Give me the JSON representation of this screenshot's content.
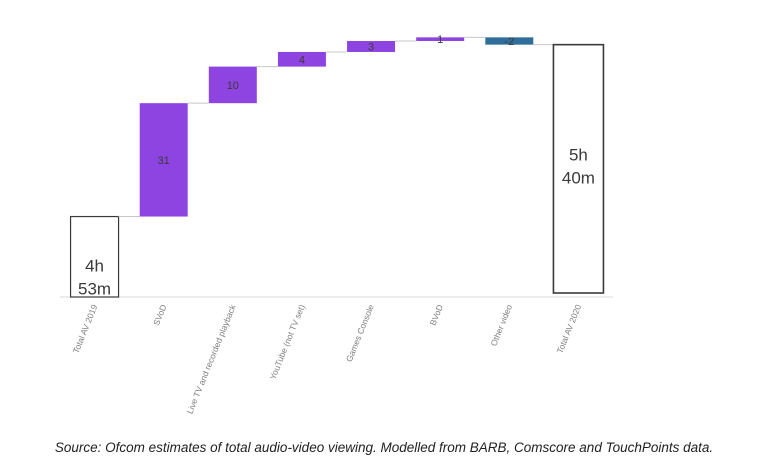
{
  "chart_data": {
    "type": "waterfall",
    "categories": [
      "Total AV 2019",
      "SVoD",
      "Live TV and recorded playback",
      "YouTube (not TV set)",
      "Games Console",
      "BVoD",
      "Other video",
      "Total AV 2020"
    ],
    "start": {
      "label": "Total AV 2019",
      "value": 293,
      "text_line1": "4h",
      "text_line2": "53m"
    },
    "steps": [
      {
        "category": "SVoD",
        "value": 31,
        "label": "31"
      },
      {
        "category": "Live TV and recorded playback",
        "value": 10,
        "label": "10"
      },
      {
        "category": "YouTube (not TV set)",
        "value": 4,
        "label": "4"
      },
      {
        "category": "Games Console",
        "value": 3,
        "label": "3"
      },
      {
        "category": "BVoD",
        "value": 1,
        "label": "1"
      },
      {
        "category": "Other video",
        "value": -2,
        "label": "-2"
      }
    ],
    "end": {
      "label": "Total AV 2020",
      "value": 340,
      "text_line1": "5h",
      "text_line2": "40m"
    },
    "ylim": [
      271,
      341
    ],
    "colors": {
      "increase": "#8e44e0",
      "decrease": "#2f6e9a",
      "total_border": "#3a3a3a",
      "connector": "#c8c8c8",
      "baseline": "#d9d9d9"
    }
  },
  "source": "Source: Ofcom estimates of total audio-video viewing. Modelled from BARB, Comscore and TouchPoints data."
}
